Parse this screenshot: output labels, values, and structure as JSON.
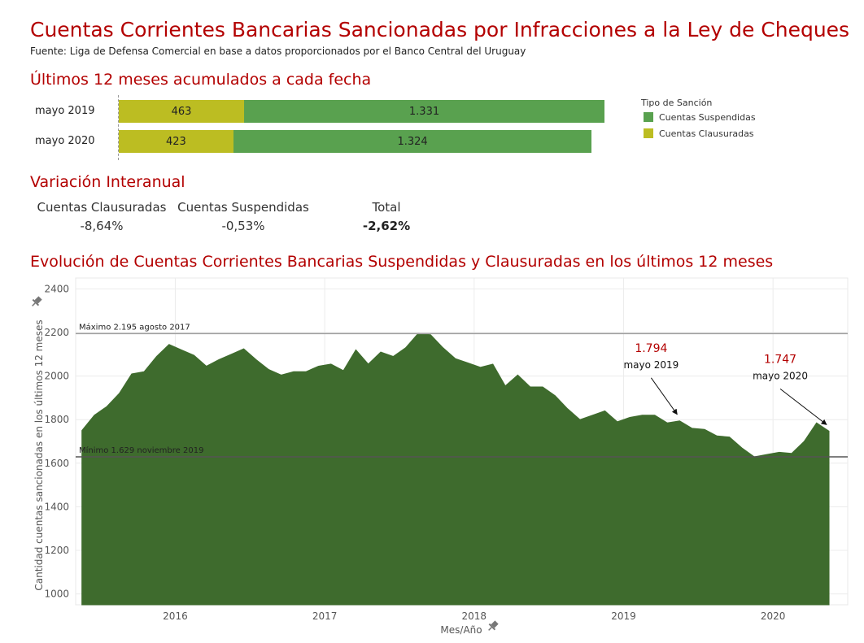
{
  "title": "Cuentas Corrientes Bancarias Sancionadas por Infracciones a la Ley de Cheques",
  "source": "Fuente: Liga de Defensa Comercial en base a datos proporcionados por el Banco Central del Uruguay",
  "section1_title": "Últimos 12 meses acumulados a cada fecha",
  "section2_title": "Variación Interanual",
  "section3_title": "Evolución de Cuentas Corrientes Bancarias Suspendidas y Clausuradas en los últimos 12 meses",
  "legend": {
    "title": "Tipo de Sanción",
    "items": [
      {
        "label": "Cuentas Suspendidas",
        "color": "#59a14f"
      },
      {
        "label": "Cuentas Clausuradas",
        "color": "#bcbd22"
      }
    ]
  },
  "variation": [
    {
      "label": "Cuentas Clausuradas",
      "value": "-8,64%"
    },
    {
      "label": "Cuentas Suspendidas",
      "value": "-0,53%"
    },
    {
      "label": "Total",
      "value": "-2,62%"
    }
  ],
  "chart_data": [
    {
      "type": "bar",
      "stacked": true,
      "orientation": "horizontal",
      "categories": [
        "mayo 2019",
        "mayo 2020"
      ],
      "series": [
        {
          "name": "Cuentas Clausuradas",
          "color": "#bcbd22",
          "values": [
            463,
            423
          ],
          "labels": [
            "463",
            "423"
          ]
        },
        {
          "name": "Cuentas Suspendidas",
          "color": "#59a14f",
          "values": [
            1331,
            1324
          ],
          "labels": [
            "1.331",
            "1.324"
          ]
        }
      ]
    },
    {
      "type": "area",
      "xlabel": "Mes/Año",
      "ylabel": "Cantidad cuentas sancionadas en los últimos 12 meses",
      "ylim": [
        950,
        2450
      ],
      "yticks": [
        1000,
        1200,
        1400,
        1600,
        1800,
        2000,
        2200,
        2400
      ],
      "xticks": [
        "2016",
        "2017",
        "2018",
        "2019",
        "2020"
      ],
      "xlim": [
        "2015-05",
        "2020-06"
      ],
      "color": "#3e6b2d",
      "x": [
        "2015-05",
        "2015-06",
        "2015-07",
        "2015-08",
        "2015-09",
        "2015-10",
        "2015-11",
        "2015-12",
        "2016-01",
        "2016-02",
        "2016-03",
        "2016-04",
        "2016-05",
        "2016-06",
        "2016-07",
        "2016-08",
        "2016-09",
        "2016-10",
        "2016-11",
        "2016-12",
        "2017-01",
        "2017-02",
        "2017-03",
        "2017-04",
        "2017-05",
        "2017-06",
        "2017-07",
        "2017-08",
        "2017-09",
        "2017-10",
        "2017-11",
        "2017-12",
        "2018-01",
        "2018-02",
        "2018-03",
        "2018-04",
        "2018-05",
        "2018-06",
        "2018-07",
        "2018-08",
        "2018-09",
        "2018-10",
        "2018-11",
        "2018-12",
        "2019-01",
        "2019-02",
        "2019-03",
        "2019-04",
        "2019-05",
        "2019-06",
        "2019-07",
        "2019-08",
        "2019-09",
        "2019-10",
        "2019-11",
        "2019-12",
        "2020-01",
        "2020-02",
        "2020-03",
        "2020-04",
        "2020-05"
      ],
      "y": [
        1750,
        1820,
        1860,
        1920,
        2010,
        2020,
        2090,
        2145,
        2120,
        2095,
        2045,
        2075,
        2100,
        2125,
        2075,
        2030,
        2005,
        2020,
        2020,
        2045,
        2055,
        2025,
        2120,
        2055,
        2110,
        2090,
        2130,
        2195,
        2190,
        2130,
        2080,
        2060,
        2040,
        2055,
        1955,
        2005,
        1950,
        1950,
        1910,
        1850,
        1800,
        1820,
        1840,
        1790,
        1810,
        1820,
        1820,
        1785,
        1794,
        1760,
        1755,
        1725,
        1720,
        1670,
        1629,
        1640,
        1650,
        1645,
        1700,
        1785,
        1747
      ],
      "reference_lines": [
        {
          "label": "Máximo 2.195 agosto 2017",
          "value": 2195,
          "color": "#9e9e9e"
        },
        {
          "label": "Mínimo 1.629 noviembre 2019",
          "value": 1629,
          "color": "#555555"
        }
      ],
      "annotations": [
        {
          "value": "1.794",
          "label": "mayo 2019",
          "x": "2019-05"
        },
        {
          "value": "1.747",
          "label": "mayo 2020",
          "x": "2020-05"
        }
      ]
    }
  ]
}
